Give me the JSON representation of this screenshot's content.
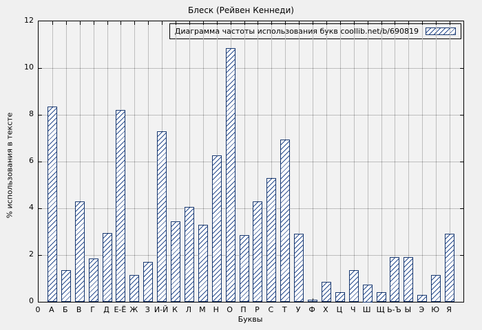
{
  "title": "Блеск (Рейвен Кеннеди)",
  "legend_label": "Диаграмма частоты использования букв coollib.net/b/690819",
  "chart_data": {
    "type": "bar",
    "title": "Блеск (Рейвен Кеннеди)",
    "xlabel": "Буквы",
    "ylabel": "% использования в тексте",
    "legend": "Диаграмма частоты использования букв coollib.net/b/690819",
    "legend_position": "top-right",
    "grid": true,
    "origin_label": "0",
    "categories": [
      "А",
      "Б",
      "В",
      "Г",
      "Д",
      "Е-Ё",
      "Ж",
      "З",
      "И-Й",
      "К",
      "Л",
      "М",
      "Н",
      "О",
      "П",
      "Р",
      "С",
      "Т",
      "У",
      "Ф",
      "Х",
      "Ц",
      "Ч",
      "Ш",
      "Щ",
      "Ь-Ъ",
      "Ы",
      "Э",
      "Ю",
      "Я"
    ],
    "values": [
      8.35,
      1.35,
      4.3,
      1.85,
      2.95,
      8.2,
      1.15,
      1.7,
      7.3,
      3.45,
      4.05,
      3.3,
      6.25,
      10.85,
      2.85,
      4.3,
      5.3,
      6.95,
      2.9,
      0.1,
      0.85,
      0.4,
      1.35,
      0.75,
      0.4,
      1.9,
      1.9,
      0.3,
      1.15,
      2.9
    ],
    "ylim": [
      0,
      12
    ],
    "yticks": [
      0,
      2,
      4,
      6,
      8,
      10,
      12
    ],
    "bar_face_color": "#ffffff",
    "bar_hatch_color": "#2a4d8f",
    "bar_edge_color": "#16366e",
    "background_color": "#f0f0f0"
  }
}
